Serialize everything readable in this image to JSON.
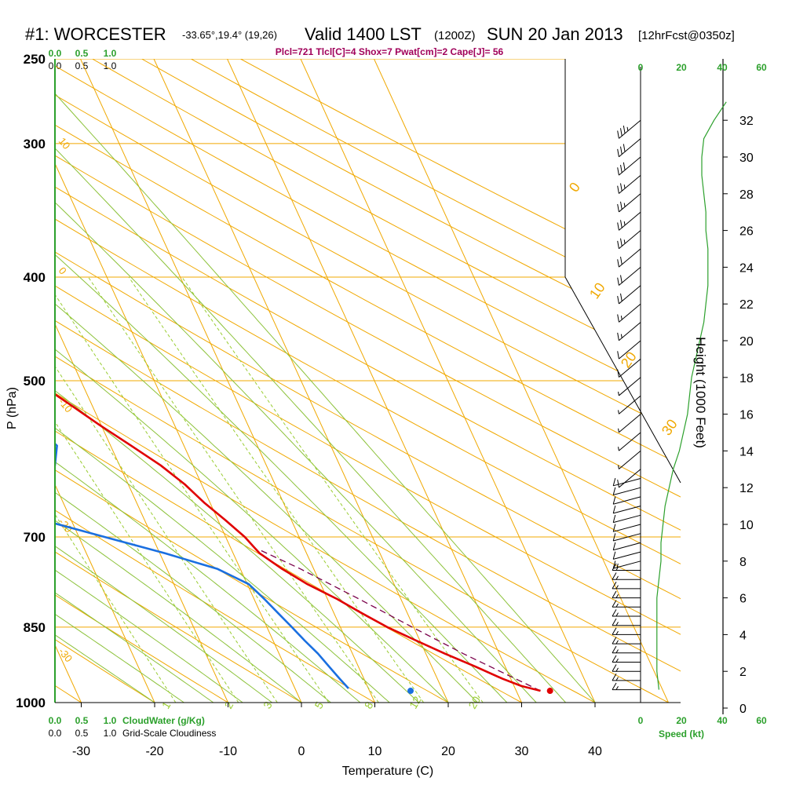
{
  "header": {
    "station": "#1: WORCESTER",
    "coords": "-33.65°,19.4° (19,26)",
    "valid": "Valid 1400 LST",
    "utc": "(1200Z)",
    "date": "SUN 20 Jan 2013",
    "forecast": "[12hrFcst@0350z]",
    "indices": "Plcl=721 Tlcl[C]=4 Shox=7 Pwat[cm]=2 Cape[J]= 56"
  },
  "axes": {
    "ylabel": "P (hPa)",
    "xlabel": "Temperature (C)",
    "height_label": "Height (1000 Feet)",
    "speed_label": "Speed (kt)",
    "cloudwater_label": "CloudWater (g/Kg)",
    "cloudiness_label": "Grid-Scale Cloudiness"
  },
  "scales": {
    "cloud_top_green": [
      "0.0",
      "0.5",
      "1.0"
    ],
    "cloud_top_black": [
      "0.0",
      "0.5",
      "1.0"
    ],
    "cloud_bottom_green": [
      "0.0",
      "0.5",
      "1.0"
    ],
    "cloud_bottom_black": [
      "0.0",
      "0.5",
      "1.0"
    ],
    "speed_ticks": [
      "0",
      "20",
      "40",
      "60"
    ]
  },
  "colors": {
    "temperature": "#e00000",
    "dewpoint": "#1a6fe0",
    "isobar": "#f0a800",
    "dry_adiabat": "#f0a800",
    "moist_adiabat": "#8cc23a",
    "mixing_ratio": "#9acd32",
    "wind_speed": "#2ca02c",
    "indices": "#a0005a"
  },
  "chart_data": {
    "type": "skew-t",
    "xlim": [
      -35,
      45
    ],
    "ylim_hpa": [
      1000,
      250
    ],
    "pressure_ticks": [
      250,
      300,
      400,
      500,
      700,
      850,
      1000
    ],
    "temperature_ticks": [
      -30,
      -20,
      -10,
      0,
      10,
      20,
      30,
      40
    ],
    "height_ticks_kft": [
      0,
      2,
      4,
      6,
      8,
      10,
      12,
      14,
      16,
      18,
      20,
      22,
      24,
      26,
      28,
      30,
      32
    ],
    "isotherm_labels": [
      "0",
      "10",
      "20",
      "30"
    ],
    "dry_adiabat_labels": [
      "10",
      "0",
      "-10",
      "-20",
      "-30"
    ],
    "mixing_ratio_labels": [
      "1",
      "2",
      "3",
      "5",
      "8",
      "12",
      "20"
    ],
    "temperature_profile": {
      "pressure": [
        975,
        965,
        950,
        925,
        900,
        875,
        850,
        825,
        800,
        775,
        750,
        725,
        715,
        700,
        675,
        650,
        625,
        600,
        575,
        550,
        525,
        500,
        475,
        450,
        425,
        400,
        375,
        350,
        325,
        300,
        275,
        260
      ],
      "temp_c": [
        33.3,
        31.0,
        28.9,
        25.9,
        22.6,
        19.5,
        16.4,
        13.8,
        11.3,
        8.2,
        5.7,
        3.6,
        3.2,
        2.6,
        1.0,
        -0.8,
        -2.3,
        -4.4,
        -7.2,
        -10.2,
        -13.1,
        -16.3,
        -19.5,
        -23.1,
        -27.3,
        -32.0,
        -37.0,
        -42.3,
        -47.8,
        -53.6,
        -59.8,
        -63.6
      ]
    },
    "dewpoint_profile": {
      "pressure": [
        970,
        950,
        925,
        900,
        875,
        850,
        825,
        800,
        775,
        765,
        750,
        725,
        700,
        680,
        660,
        650,
        625,
        600,
        575,
        550,
        525,
        500,
        475,
        450,
        425,
        400,
        375,
        360,
        350,
        330,
        300,
        270,
        260
      ],
      "dewpt_c": [
        7.3,
        6.7,
        6.0,
        5.3,
        4.3,
        3.4,
        2.4,
        1.4,
        0.2,
        -1.1,
        -3.1,
        -9.3,
        -16.5,
        -22.4,
        -30.1,
        -35.3,
        -24.4,
        -18.8,
        -17.3,
        -19.1,
        -22.9,
        -27.4,
        -32.8,
        -39.0,
        -45.2,
        -49.9,
        -51.2,
        -51.7,
        -51.9,
        -56.4,
        -65.0,
        -74.1,
        -77.5
      ]
    },
    "parcel_path": {
      "pressure": [
        975,
        900,
        850,
        800,
        750,
        721
      ],
      "temp_c": [
        33.3,
        25.1,
        19.8,
        14.3,
        8.2,
        4.0
      ]
    },
    "surface_temp_marker": {
      "pressure": 975,
      "temp_c": 34.6
    },
    "surface_dewpt_marker": {
      "pressure": 975,
      "temp_c": 15.6
    },
    "wind_speed_profile": {
      "height_kft": [
        1,
        2,
        3,
        4,
        5,
        6,
        7,
        8,
        9,
        10,
        11,
        12,
        13,
        14,
        15,
        16,
        17,
        18,
        19,
        20,
        21,
        22,
        23,
        24,
        25,
        26,
        27,
        28,
        29,
        30,
        31,
        32,
        33
      ],
      "speed_kt": [
        9,
        8,
        8,
        8,
        8,
        8,
        9,
        10,
        10,
        11,
        12,
        14,
        16,
        19,
        21,
        23,
        24,
        25,
        27,
        29,
        31,
        32,
        33,
        33,
        33,
        32,
        32,
        31,
        30,
        30,
        31,
        36,
        42
      ]
    },
    "wind_barbs": {
      "height_kft": [
        1,
        1.5,
        2,
        2.5,
        3,
        3.5,
        4,
        4.5,
        5,
        5.5,
        6,
        6.5,
        7,
        7.5,
        8,
        8.5,
        9,
        9.5,
        10,
        10.5,
        11,
        11.5,
        12,
        12.5,
        13,
        14,
        15,
        16,
        17,
        18,
        19,
        20,
        21,
        22,
        23,
        24,
        25,
        26,
        27,
        28,
        29,
        30,
        31,
        32
      ],
      "speed_kt": [
        15,
        15,
        15,
        15,
        15,
        15,
        15,
        15,
        15,
        15,
        15,
        15,
        15,
        15,
        15,
        10,
        10,
        10,
        10,
        10,
        10,
        10,
        10,
        10,
        10,
        5,
        5,
        5,
        5,
        5,
        10,
        10,
        15,
        15,
        20,
        20,
        20,
        25,
        25,
        25,
        25,
        30,
        30,
        35
      ]
    }
  }
}
